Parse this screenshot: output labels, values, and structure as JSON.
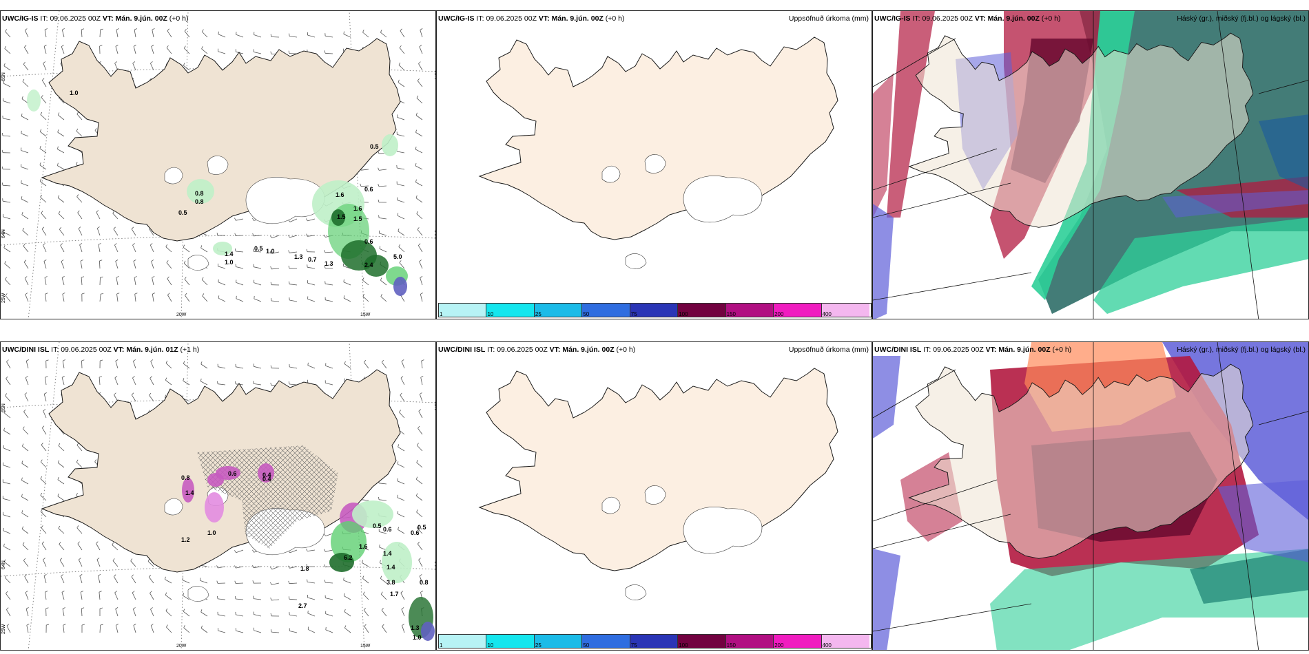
{
  "panels": [
    {
      "id": "tl",
      "model": "UWC/IG-IS",
      "it_label": "IT:",
      "it": "09.06.2025 00Z",
      "vt_label": "VT:",
      "vt": "Mán. 9.jún. 00Z",
      "lead": "(+0 h)",
      "right": ""
    },
    {
      "id": "tm",
      "model": "UWC/IG-IS",
      "it_label": "IT:",
      "it": "09.06.2025 00Z",
      "vt_label": "VT:",
      "vt": "Mán. 9.jún. 00Z",
      "lead": "(+0 h)",
      "right": "Uppsöfnuð úrkoma (mm)"
    },
    {
      "id": "tr",
      "model": "UWC/IG-IS",
      "it_label": "IT:",
      "it": "09.06.2025 00Z",
      "vt_label": "VT:",
      "vt": "Mán. 9.jún. 00Z",
      "lead": "(+0 h)",
      "right": "Háský (gr.), miðský (fj.bl.) og lágský (bl.)"
    },
    {
      "id": "bl",
      "model": "UWC/DINI ISL",
      "it_label": "IT:",
      "it": "09.06.2025 00Z",
      "vt_label": "VT:",
      "vt": "Mán. 9.jún. 01Z",
      "lead": "(+1 h)",
      "right": ""
    },
    {
      "id": "bm",
      "model": "UWC/DINI ISL",
      "it_label": "IT:",
      "it": "09.06.2025 00Z",
      "vt_label": "VT:",
      "vt": "Mán. 9.jún. 00Z",
      "lead": "(+0 h)",
      "right": "Uppsöfnuð úrkoma (mm)"
    },
    {
      "id": "br",
      "model": "UWC/DINI ISL",
      "it_label": "IT:",
      "it": "09.06.2025 00Z",
      "vt_label": "VT:",
      "vt": "Mán. 9.jún. 00Z",
      "lead": "(+0 h)",
      "right": "Háský (gr.), miðský (fj.bl.) og lágský (bl.)"
    }
  ],
  "graticule": {
    "lat_top": "65N",
    "lat_mid": "64N",
    "lon_left": "25W",
    "lon_a": "20W",
    "lon_b": "15W",
    "lat_right_top": "65N",
    "lat_right_mid": "64N"
  },
  "colorbar": {
    "ticks": [
      "1",
      "10",
      "25",
      "50",
      "75",
      "100",
      "150",
      "200",
      "400"
    ],
    "colors": [
      "#b7f3f5",
      "#14e6ee",
      "#1bbbe8",
      "#2f6de0",
      "#2a35b6",
      "#720240",
      "#b10f82",
      "#f01cc0",
      "#f4b7ef"
    ]
  },
  "precip_labels_top": [
    "1.0",
    "0.5",
    "0.8",
    "0.8",
    "0.5",
    "1.4",
    "1.0",
    "0.5",
    "1.0",
    "1.3",
    "0.7",
    "1.3",
    "1.6",
    "1.6",
    "1.5",
    "1.5",
    "0.6",
    "0.6",
    "5.0",
    "2.4"
  ],
  "precip_labels_bottom": [
    "0.8",
    "0.4",
    "0.6",
    "0.4",
    "1.4",
    "1.2",
    "1.0",
    "0.6",
    "0.5",
    "0.6",
    "1.4",
    "6.2",
    "1.4",
    "1.6",
    "1.8",
    "2.7",
    "1.7",
    "3.8",
    "0.8",
    "1.3",
    "1.0",
    "0.5"
  ],
  "colors": {
    "land": "#efe3d3",
    "land_mid": "#fcefe2",
    "coast": "#1a1a1a",
    "green_light": "#bff0c8",
    "green_mid": "#5fcf72",
    "green_dark": "#1f6e2c",
    "purple": "#c65bc0",
    "high_cloud": "#2ecf98",
    "mid_cloud": "#b21a40",
    "low_cloud": "#5e5ed8"
  }
}
